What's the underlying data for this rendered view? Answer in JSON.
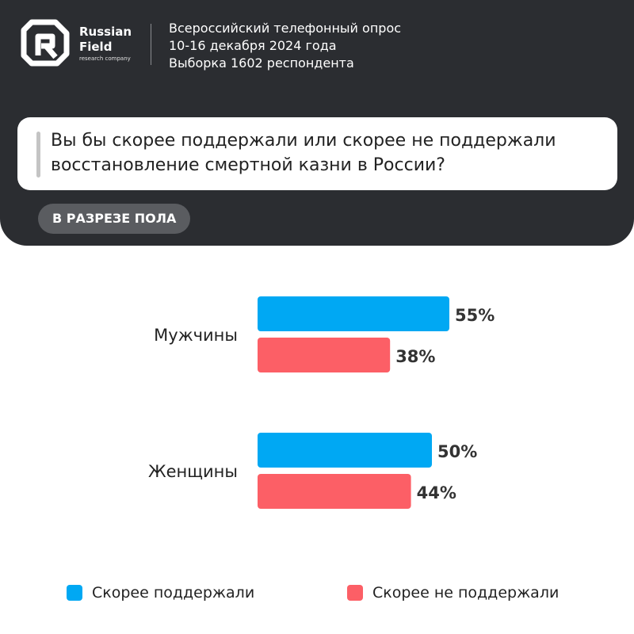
{
  "brand": {
    "name_line1": "Russian",
    "name_line2": "Field",
    "name_sub": "research company",
    "logo_icon": "russian-field-logo"
  },
  "survey": {
    "title": "Всероссийский телефонный опрос",
    "dates": "10-16 декабря 2024 года",
    "sample": "Выборка 1602 респондента"
  },
  "question": "Вы бы скорее поддержали или скорее не поддержали восстановление смертной казни в России?",
  "tag": "В РАЗРЕЗЕ ПОЛА",
  "colors": {
    "header_bg": "#2b2d31",
    "support": "#00a8f3",
    "oppose": "#fc5f66"
  },
  "chart_data": {
    "type": "bar",
    "orientation": "horizontal",
    "categories": [
      "Мужчины",
      "Женщины"
    ],
    "series": [
      {
        "name": "Скорее поддержали",
        "values": [
          55,
          50
        ],
        "labels": [
          "55%",
          "50%"
        ],
        "color": "#00a8f3"
      },
      {
        "name": "Скорее не поддержали",
        "values": [
          38,
          44
        ],
        "labels": [
          "38%",
          "44%"
        ],
        "color": "#fc5f66"
      }
    ],
    "unit": "%",
    "xlim": [
      0,
      100
    ],
    "grid": false,
    "legend_position": "bottom"
  },
  "legend": [
    {
      "label": "Скорее поддержали",
      "color": "#00a8f3"
    },
    {
      "label": "Скорее не поддержали",
      "color": "#fc5f66"
    }
  ]
}
